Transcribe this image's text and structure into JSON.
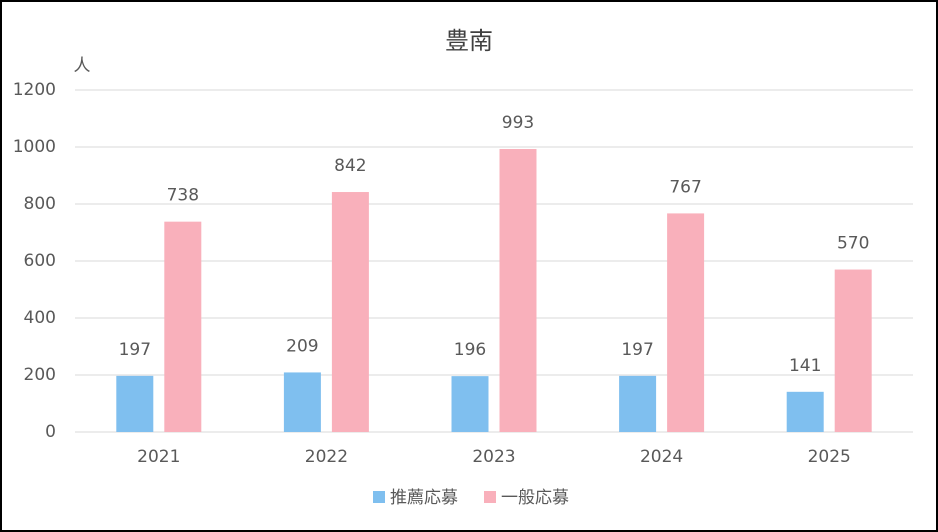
{
  "chart_data": {
    "type": "bar",
    "title": "豊南",
    "y_label": "人",
    "categories": [
      "2021",
      "2022",
      "2023",
      "2024",
      "2025"
    ],
    "series": [
      {
        "name": "推薦応募",
        "color": "#7fbfef",
        "values": [
          197,
          209,
          196,
          197,
          141
        ]
      },
      {
        "name": "一般応募",
        "color": "#f9b0bb",
        "values": [
          738,
          842,
          993,
          767,
          570
        ]
      }
    ],
    "ylim": [
      0,
      1200
    ],
    "yticks": [
      0,
      200,
      400,
      600,
      800,
      1000,
      1200
    ],
    "grid": true,
    "legend": "bottom",
    "data_labels": true
  }
}
